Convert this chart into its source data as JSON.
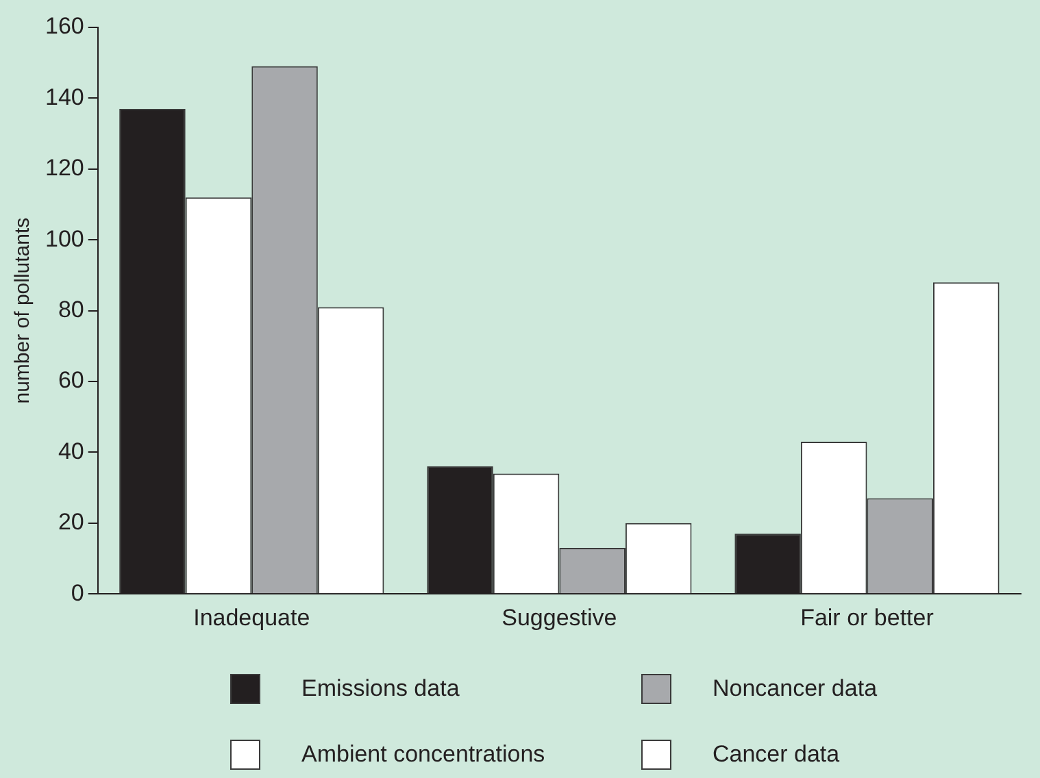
{
  "chart_data": {
    "type": "bar",
    "ylabel": "number of pollutants",
    "categories": [
      "Inadequate",
      "Suggestive",
      "Fair or better"
    ],
    "series": [
      {
        "name": "Emissions data",
        "color": "#231f20",
        "values": [
          137,
          36,
          17
        ]
      },
      {
        "name": "Ambient concentrations",
        "color": "#ffffff",
        "values": [
          112,
          34,
          43
        ]
      },
      {
        "name": "Noncancer data",
        "color": "#a7a9ac",
        "values": [
          149,
          13,
          27
        ]
      },
      {
        "name": "Cancer data",
        "color": "#ffffff",
        "values": [
          81,
          20,
          88
        ]
      }
    ],
    "ylim": [
      0,
      160
    ],
    "yticks": [
      0,
      20,
      40,
      60,
      80,
      100,
      120,
      140,
      160
    ],
    "grid": false,
    "legend": "bottom"
  }
}
